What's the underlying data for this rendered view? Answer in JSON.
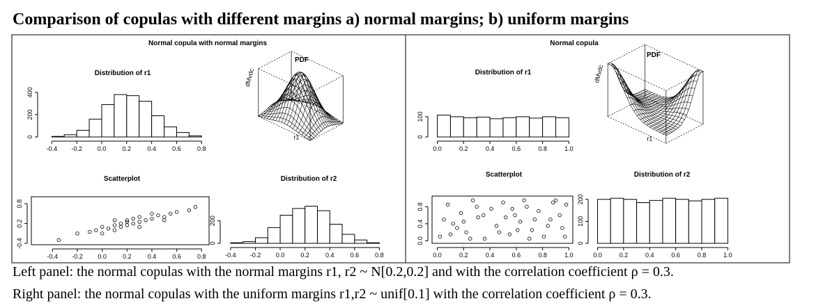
{
  "title": "Comparison of copulas with different margins a) normal margins; b) uniform margins",
  "panels": [
    {
      "title": "Normal copula with normal margins",
      "charts": [
        {
          "type": "histogram",
          "title": "Distribution of r1",
          "bins": [
            -0.4,
            -0.3,
            -0.2,
            -0.1,
            0,
            0.1,
            0.2,
            0.3,
            0.4,
            0.5,
            0.6,
            0.7,
            0.8
          ],
          "values": [
            5,
            20,
            60,
            160,
            290,
            380,
            370,
            320,
            190,
            90,
            40,
            10
          ],
          "xlim": [
            -0.48,
            0.86
          ],
          "ylim": [
            0,
            430
          ],
          "xticks": [
            -0.4,
            -0.2,
            {
              "value": 0,
              "label": "0.0"
            },
            0.2,
            0.4,
            0.6,
            0.8
          ],
          "yticks": [
            0,
            200,
            400
          ]
        },
        {
          "type": "surface",
          "title": "PDF",
          "z_label": "dMvdc",
          "x_label": "r1"
        },
        {
          "type": "scatter",
          "title": "Scatterplot",
          "x": [
            -0.35,
            -0.2,
            -0.1,
            -0.05,
            0,
            0.05,
            0.1,
            0.1,
            0.15,
            0.15,
            0.2,
            0.2,
            0.2,
            0.25,
            0.25,
            0.3,
            0.3,
            0.35,
            0.4,
            0.45,
            0.5,
            0.55,
            0.6,
            0.7,
            0.75,
            0,
            0.1,
            0.3,
            0.4,
            0.5
          ],
          "y": [
            -0.3,
            -0.1,
            -0.05,
            0,
            0.1,
            0.05,
            0.15,
            0,
            0.2,
            0.1,
            0.25,
            0.15,
            0.3,
            0.2,
            0.35,
            0.25,
            0.4,
            0.3,
            0.35,
            0.45,
            0.4,
            0.5,
            0.55,
            0.6,
            0.7,
            -0.1,
            0.3,
            0.1,
            0.5,
            0.3
          ],
          "xlim": [
            -0.57,
            0.86
          ],
          "ylim": [
            -0.44,
            1.01
          ],
          "xticks": [
            -0.4,
            -0.2,
            {
              "value": 0,
              "label": "0.0"
            },
            0.2,
            0.4,
            0.6,
            0.8
          ],
          "yticks": [
            -0.4,
            0.2,
            0.8
          ]
        },
        {
          "type": "histogram",
          "title": "Distribution of r2",
          "bins": [
            -0.4,
            -0.3,
            -0.2,
            -0.1,
            0,
            0.1,
            0.2,
            0.3,
            0.4,
            0.5,
            0.6,
            0.7,
            0.8
          ],
          "values": [
            5,
            15,
            50,
            140,
            250,
            310,
            330,
            290,
            170,
            80,
            30,
            5
          ],
          "xlim": [
            -0.45,
            0.82
          ],
          "ylim": [
            0,
            420
          ],
          "xticks": [
            -0.4,
            -0.2,
            {
              "value": 0,
              "label": "0.0"
            },
            0.2,
            0.4,
            0.6,
            0.8
          ],
          "yticks": [
            0,
            200
          ]
        }
      ]
    },
    {
      "title": "Normal copula",
      "charts": [
        {
          "type": "histogram",
          "title": "Distribution of r1",
          "bins": [
            0,
            0.1,
            0.2,
            0.3,
            0.4,
            0.5,
            0.6,
            0.7,
            0.8,
            0.9,
            1
          ],
          "values": [
            108,
            100,
            95,
            98,
            90,
            95,
            100,
            93,
            100,
            95
          ],
          "xlim": [
            -0.04,
            1.03
          ],
          "ylim": [
            0,
            230
          ],
          "xticks": [
            {
              "value": 0,
              "label": "0.0"
            },
            0.2,
            0.4,
            0.6,
            0.8,
            {
              "value": 1,
              "label": "1.0"
            }
          ],
          "yticks": [
            0,
            100
          ]
        },
        {
          "type": "surface",
          "title": "PDF",
          "z_label": "dMvdc",
          "x_label": "r1"
        },
        {
          "type": "scatter",
          "title": "Scatterplot",
          "x": [
            0.02,
            0.08,
            0.12,
            0.18,
            0.22,
            0.27,
            0.31,
            0.36,
            0.41,
            0.45,
            0.5,
            0.55,
            0.59,
            0.63,
            0.68,
            0.72,
            0.77,
            0.81,
            0.86,
            0.9,
            0.95,
            0.98,
            0.05,
            0.15,
            0.25,
            0.35,
            0.47,
            0.57,
            0.66,
            0.74,
            0.84,
            0.93,
            0.1,
            0.3,
            0.52,
            0.7,
            0.88,
            0.2,
            0.61,
            0.97
          ],
          "y": [
            0.1,
            0.85,
            0.4,
            0.65,
            0.2,
            0.95,
            0.55,
            0.05,
            0.75,
            0.35,
            0.9,
            0.15,
            0.6,
            0.45,
            0.8,
            0.25,
            0.7,
            0.1,
            0.5,
            0.95,
            0.3,
            0.85,
            0.5,
            0.3,
            0.05,
            0.6,
            0.2,
            0.75,
            0.95,
            0.5,
            0.35,
            0.6,
            0.15,
            0.8,
            0.55,
            0.05,
            0.9,
            0.45,
            0.25,
            0.1
          ],
          "xlim": [
            -0.04,
            1.03
          ],
          "ylim": [
            -0.06,
            1.05
          ],
          "xticks": [
            {
              "value": 0,
              "label": "0.0"
            },
            0.2,
            0.4,
            0.6,
            0.8,
            {
              "value": 1,
              "label": "1.0"
            }
          ],
          "yticks": [
            {
              "value": 0,
              "label": "0.0"
            },
            0.4,
            0.8
          ]
        },
        {
          "type": "histogram",
          "title": "Distribution of r2",
          "bins": [
            0,
            0.1,
            0.2,
            0.3,
            0.4,
            0.5,
            0.6,
            0.7,
            0.8,
            0.9,
            1
          ],
          "values": [
            200,
            205,
            200,
            185,
            195,
            205,
            200,
            193,
            200,
            205
          ],
          "xlim": [
            -0.04,
            1.03
          ],
          "ylim": [
            0,
            215
          ],
          "xticks": [
            {
              "value": 0,
              "label": "0.0"
            },
            0.2,
            0.4,
            0.6,
            0.8,
            {
              "value": 1,
              "label": "1.0"
            }
          ],
          "yticks": [
            0,
            100,
            200
          ]
        }
      ]
    }
  ],
  "captions": [
    "Left panel: the normal copulas with the normal margins r1, r2 ~ N[0.2,0.2] and with the correlation coefficient ρ = 0.3.",
    "Right panel: the normal copulas with the uniform margins r1,r2 ~ unif[0.1] with the correlation coefficient ρ = 0.3."
  ]
}
